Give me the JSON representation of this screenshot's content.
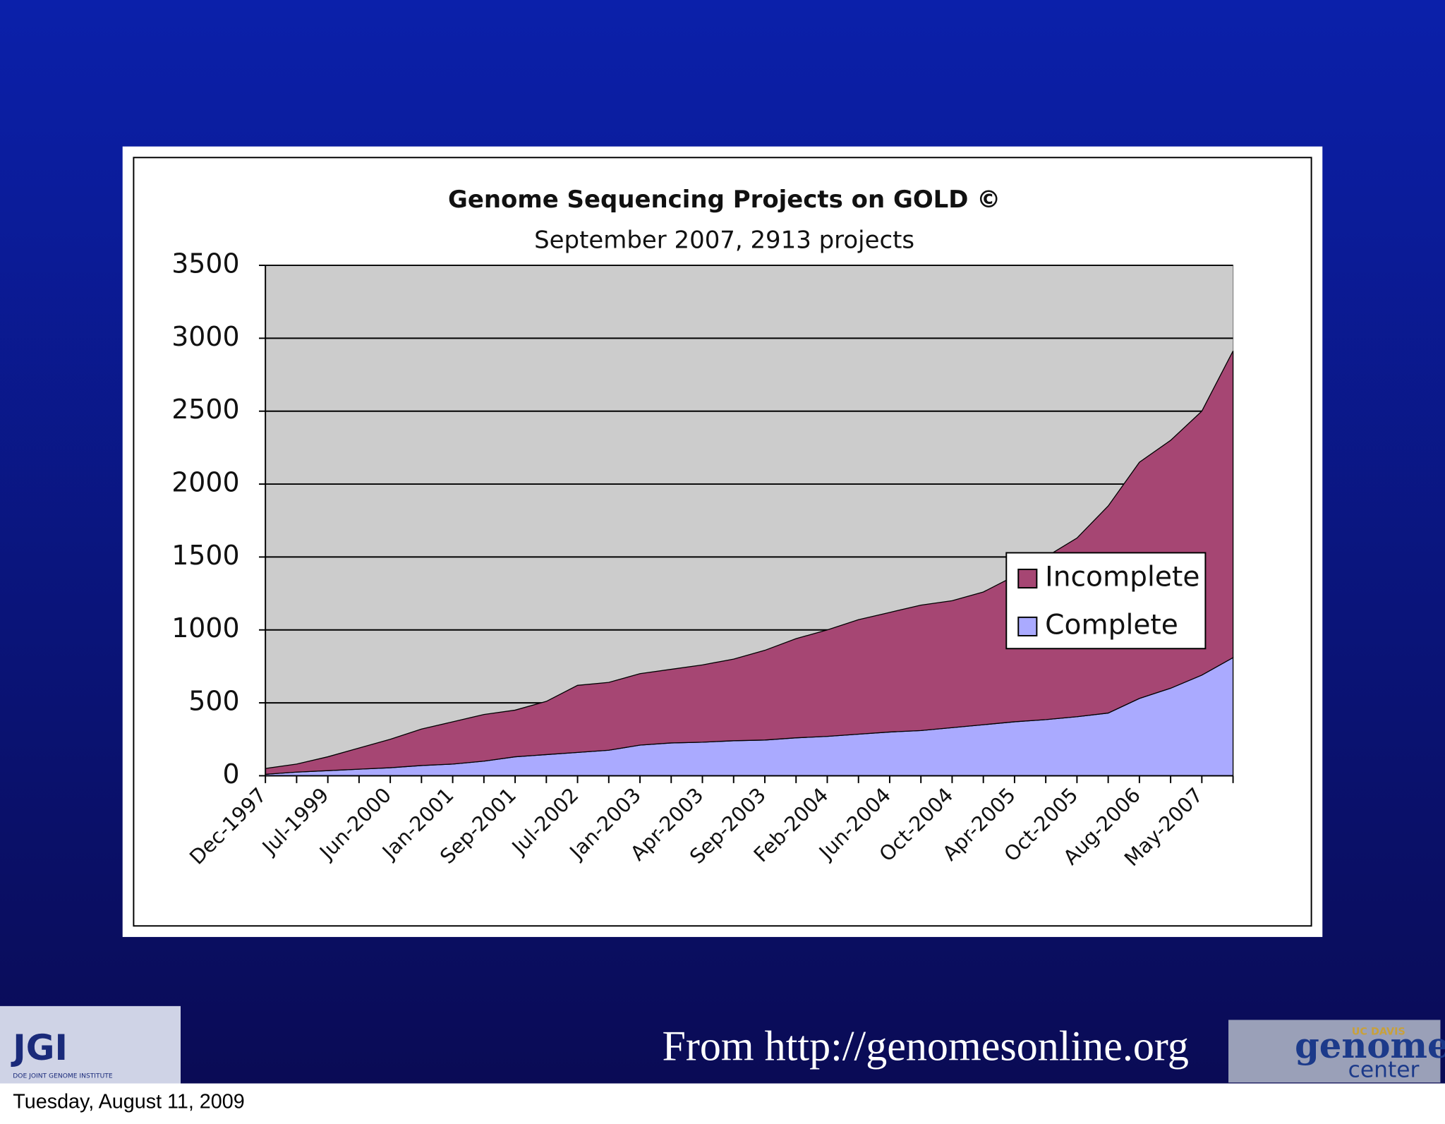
{
  "chart_data": {
    "type": "area",
    "title": "Genome Sequencing Projects on GOLD ©",
    "subtitle": "September 2007, 2913 projects",
    "categories": [
      "Dec-1997",
      null,
      "Jul-1999",
      null,
      "Jun-2000",
      null,
      "Jan-2001",
      null,
      "Sep-2001",
      null,
      "Jul-2002",
      null,
      "Jan-2003",
      null,
      "Apr-2003",
      null,
      "Sep-2003",
      null,
      "Feb-2004",
      null,
      "Jun-2004",
      null,
      "Oct-2004",
      null,
      "Apr-2005",
      null,
      "Oct-2005",
      null,
      "Aug-2006",
      null,
      "May-2007",
      null
    ],
    "series": [
      {
        "name": "Complete",
        "color": "#aaaaff",
        "values": [
          10,
          25,
          35,
          45,
          55,
          70,
          80,
          100,
          130,
          145,
          160,
          175,
          210,
          225,
          230,
          240,
          245,
          260,
          270,
          285,
          300,
          310,
          330,
          350,
          370,
          385,
          405,
          430,
          530,
          600,
          690,
          810
        ]
      },
      {
        "name": "Incomplete",
        "color": "#a64673",
        "values": [
          40,
          55,
          95,
          145,
          195,
          250,
          290,
          320,
          320,
          365,
          460,
          465,
          490,
          505,
          530,
          560,
          615,
          680,
          730,
          785,
          820,
          860,
          870,
          910,
          1000,
          1115,
          1225,
          1420,
          1620,
          1700,
          1810,
          2103
        ]
      }
    ],
    "stacked": true,
    "ylim": [
      0,
      3500
    ],
    "yticks": [
      0,
      500,
      1000,
      1500,
      2000,
      2500,
      3000,
      3500
    ],
    "grid": true,
    "legend": "right"
  },
  "caption": "From http://genomesonline.org",
  "date": "Tuesday, August 11, 2009",
  "logos": {
    "jgi": "JGI",
    "jgi_sub": "DOE JOINT GENOME INSTITUTE",
    "ucdavis": "UC DAVIS",
    "genome": "genome",
    "center": "center"
  }
}
